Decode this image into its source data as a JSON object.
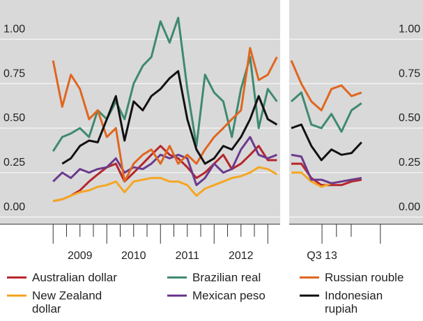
{
  "chart_data": [
    {
      "type": "line",
      "x": [
        2009.0,
        2009.17,
        2009.33,
        2009.5,
        2009.67,
        2009.83,
        2010.0,
        2010.17,
        2010.33,
        2010.5,
        2010.67,
        2010.83,
        2011.0,
        2011.17,
        2011.33,
        2011.5,
        2011.67,
        2011.83,
        2012.0,
        2012.17,
        2012.33,
        2012.5,
        2012.67,
        2012.83,
        2013.0,
        2013.17
      ],
      "xlim": [
        2008.01,
        2013.23
      ],
      "xticks": [
        {
          "value": 2009.5,
          "label": "2009"
        },
        {
          "value": 2010.5,
          "label": "2010"
        },
        {
          "value": 2011.5,
          "label": "2011"
        },
        {
          "value": 2012.5,
          "label": "2012"
        }
      ],
      "major_ticks": [
        2009,
        2010,
        2011,
        2012,
        2013
      ],
      "minor_ticks": [
        2009.25,
        2009.5,
        2009.75,
        2010.25,
        2010.5,
        2010.75,
        2011.25,
        2011.5,
        2011.75,
        2012.25,
        2012.5,
        2012.75
      ],
      "ylim": [
        -0.04,
        1.22
      ],
      "yticks": [
        {
          "value": 0,
          "label": "0.00"
        },
        {
          "value": 0.25,
          "label": "0.25"
        },
        {
          "value": 0.5,
          "label": "0.50"
        },
        {
          "value": 0.75,
          "label": "0.75"
        },
        {
          "value": 1,
          "label": "1.00"
        }
      ],
      "grid": true,
      "series": [
        {
          "name": "Australian dollar",
          "color": "#b5262b",
          "values": [
            0.09,
            0.1,
            0.12,
            0.15,
            0.2,
            0.24,
            0.28,
            0.3,
            0.2,
            0.25,
            0.3,
            0.35,
            0.4,
            0.35,
            0.33,
            0.28,
            0.22,
            0.25,
            0.3,
            0.35,
            0.27,
            0.3,
            0.35,
            0.4,
            0.32,
            0.32
          ]
        },
        {
          "name": "New Zealand dollar",
          "color": "#f5a623",
          "values": [
            0.09,
            0.1,
            0.12,
            0.14,
            0.15,
            0.17,
            0.18,
            0.2,
            0.14,
            0.2,
            0.21,
            0.22,
            0.22,
            0.2,
            0.2,
            0.18,
            0.12,
            0.16,
            0.18,
            0.2,
            0.22,
            0.23,
            0.25,
            0.28,
            0.27,
            0.24
          ]
        },
        {
          "name": "Brazilian real",
          "color": "#3f8a6e",
          "values": [
            0.37,
            0.45,
            0.47,
            0.5,
            0.45,
            0.6,
            0.55,
            0.65,
            0.55,
            0.75,
            0.85,
            0.9,
            1.1,
            0.98,
            1.12,
            0.72,
            0.4,
            0.8,
            0.7,
            0.65,
            0.45,
            0.72,
            0.9,
            0.5,
            0.72,
            0.65
          ]
        },
        {
          "name": "Mexican peso",
          "color": "#6b3a8e",
          "values": [
            0.2,
            0.25,
            0.22,
            0.27,
            0.25,
            0.27,
            0.28,
            0.33,
            0.25,
            0.28,
            0.27,
            0.3,
            0.35,
            0.33,
            0.35,
            0.33,
            0.18,
            0.22,
            0.3,
            0.25,
            0.27,
            0.38,
            0.45,
            0.35,
            0.33,
            0.35
          ]
        },
        {
          "name": "Russian rouble",
          "color": "#e0661f",
          "values": [
            0.88,
            0.62,
            0.8,
            0.72,
            0.55,
            0.6,
            0.45,
            0.5,
            0.2,
            0.3,
            0.35,
            0.38,
            0.3,
            0.4,
            0.3,
            0.35,
            0.3,
            0.38,
            0.45,
            0.5,
            0.55,
            0.6,
            0.95,
            0.77,
            0.8,
            0.9
          ]
        },
        {
          "name": "Indonesian rupiah",
          "color": "#111111",
          "values": [
            null,
            0.3,
            0.33,
            0.4,
            0.43,
            0.42,
            0.55,
            0.68,
            0.43,
            0.65,
            0.6,
            0.68,
            0.72,
            0.78,
            0.82,
            0.55,
            0.38,
            0.3,
            0.33,
            0.4,
            0.38,
            0.45,
            0.55,
            0.68,
            0.55,
            0.52
          ]
        }
      ]
    },
    {
      "type": "line",
      "x": [
        1,
        2,
        3,
        4,
        5,
        6,
        7,
        8
      ],
      "xlim": [
        0.79,
        14.13
      ],
      "xticks": [
        {
          "value": 4.06,
          "label": "Q3 13"
        }
      ],
      "major_ticks": [
        4.06,
        9.88
      ],
      "minor_ticks": [
        5.5,
        6.97
      ],
      "ylim": [
        -0.04,
        1.22
      ],
      "yticks": [
        {
          "value": 0,
          "label": "0.00"
        },
        {
          "value": 0.25,
          "label": "0.25"
        },
        {
          "value": 0.5,
          "label": "0.50"
        },
        {
          "value": 0.75,
          "label": "0.75"
        },
        {
          "value": 1,
          "label": "1.00"
        }
      ],
      "grid": true,
      "series": [
        {
          "color": "#b5262b",
          "values": [
            0.3,
            0.3,
            0.22,
            0.18,
            0.18,
            0.18,
            0.2,
            0.21
          ]
        },
        {
          "color": "#f5a623",
          "values": [
            0.25,
            0.25,
            0.2,
            0.17,
            0.19,
            0.2,
            0.21,
            0.22
          ]
        },
        {
          "color": "#3f8a6e",
          "values": [
            0.65,
            0.7,
            0.52,
            0.5,
            0.58,
            0.48,
            0.6,
            0.64
          ]
        },
        {
          "color": "#6b3a8e",
          "values": [
            0.35,
            0.34,
            0.21,
            0.21,
            0.19,
            0.2,
            0.21,
            0.22
          ]
        },
        {
          "color": "#e0661f",
          "values": [
            0.88,
            0.75,
            0.65,
            0.6,
            0.72,
            0.74,
            0.68,
            0.7
          ]
        },
        {
          "color": "#111111",
          "values": [
            0.5,
            0.52,
            0.4,
            0.32,
            0.38,
            0.35,
            0.36,
            0.42
          ]
        }
      ]
    }
  ]
}
